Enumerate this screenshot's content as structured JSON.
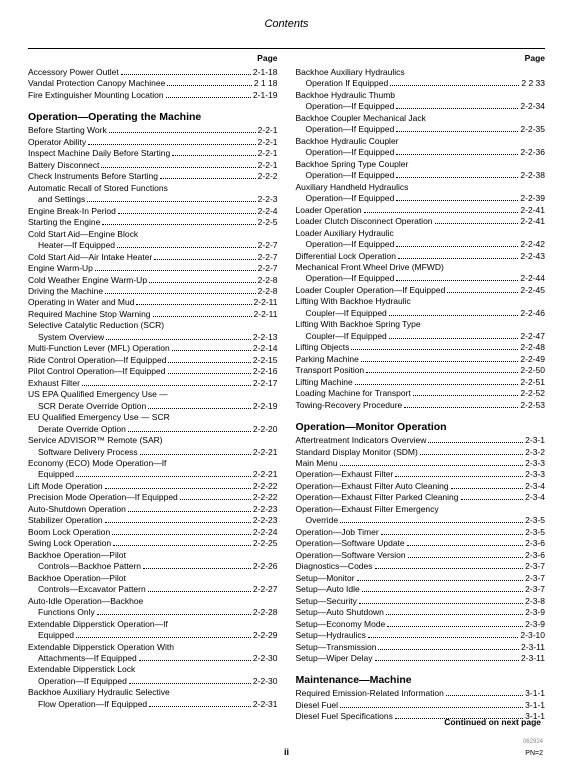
{
  "title": "Contents",
  "pageHeader": "Page",
  "continued": "Continued on next page",
  "pageNumber": "ii",
  "pnLabel": "PN=2",
  "leftColumn": {
    "topEntries": [
      {
        "t": "Accessory Power Outlet",
        "p": "2-1-18",
        "i": 0
      },
      {
        "t": "Vandal Protection   Canopy Machinee",
        "p": "2 1 18",
        "i": 0
      },
      {
        "t": "Fire Extinguisher Mounting Location",
        "p": "2-1-19",
        "i": 0
      }
    ],
    "sections": [
      {
        "heading": "Operation—Operating the Machine",
        "entries": [
          {
            "t": "Before Starting Work",
            "p": "2-2-1",
            "i": 0
          },
          {
            "t": "Operator Ability",
            "p": "2-2-1",
            "i": 0
          },
          {
            "t": "Inspect Machine Daily Before Starting",
            "p": "2-2-1",
            "i": 0
          },
          {
            "t": "Battery Disconnect",
            "p": "2-2-1",
            "i": 0
          },
          {
            "t": "Check Instruments Before Starting",
            "p": "2-2-2",
            "i": 0
          },
          {
            "t": "Automatic Recall of Stored Functions",
            "p": "",
            "i": 0,
            "noLead": true
          },
          {
            "t": "and Settings",
            "p": "2-2-3",
            "i": 1
          },
          {
            "t": "Engine Break-In Period",
            "p": "2-2-4",
            "i": 0
          },
          {
            "t": "Starting the Engine",
            "p": "2-2-5",
            "i": 0
          },
          {
            "t": "Cold Start Aid—Engine Block",
            "p": "",
            "i": 0,
            "noLead": true
          },
          {
            "t": "Heater—If Equipped",
            "p": "2-2-7",
            "i": 1
          },
          {
            "t": "Cold Start Aid—Air Intake Heater",
            "p": "2-2-7",
            "i": 0
          },
          {
            "t": "Engine Warm-Up",
            "p": "2-2-7",
            "i": 0
          },
          {
            "t": "Cold Weather Engine Warm-Up",
            "p": "2-2-8",
            "i": 0
          },
          {
            "t": "Driving the Machine",
            "p": "2-2-8",
            "i": 0
          },
          {
            "t": "Operating in Water and Mud",
            "p": "2-2-11",
            "i": 0
          },
          {
            "t": "Required Machine Stop Warning",
            "p": "2-2-11",
            "i": 0
          },
          {
            "t": "Selective Catalytic Reduction (SCR)",
            "p": "",
            "i": 0,
            "noLead": true
          },
          {
            "t": "System Overview",
            "p": "2-2-13",
            "i": 1
          },
          {
            "t": "Multi-Function Lever (MFL) Operation",
            "p": "2-2-14",
            "i": 0
          },
          {
            "t": "Ride Control Operation—If Equipped",
            "p": "2-2-15",
            "i": 0
          },
          {
            "t": "Pilot Control Operation—If Equipped",
            "p": "2-2-16",
            "i": 0
          },
          {
            "t": "Exhaust Filter",
            "p": "2-2-17",
            "i": 0
          },
          {
            "t": "US EPA Qualified Emergency Use —",
            "p": "",
            "i": 0,
            "noLead": true
          },
          {
            "t": "SCR Derate Override Option",
            "p": "2-2-19",
            "i": 1
          },
          {
            "t": "EU Qualified Emergency Use — SCR",
            "p": "",
            "i": 0,
            "noLead": true
          },
          {
            "t": "Derate Override Option",
            "p": "2-2-20",
            "i": 1
          },
          {
            "t": "Service ADVISOR™ Remote (SAR)",
            "p": "",
            "i": 0,
            "noLead": true
          },
          {
            "t": "Software Delivery Process",
            "p": "2-2-21",
            "i": 1
          },
          {
            "t": "Economy (ECO) Mode Operation—If",
            "p": "",
            "i": 0,
            "noLead": true
          },
          {
            "t": "Equipped",
            "p": "2-2-21",
            "i": 1
          },
          {
            "t": "Lift Mode Operation",
            "p": "2-2-22",
            "i": 0
          },
          {
            "t": "Precision Mode Operation—If Equipped",
            "p": "2-2-22",
            "i": 0
          },
          {
            "t": "Auto-Shutdown Operation",
            "p": "2-2-23",
            "i": 0
          },
          {
            "t": "Stabilizer Operation",
            "p": "2-2-23",
            "i": 0
          },
          {
            "t": "Boom Lock Operation",
            "p": "2-2-24",
            "i": 0
          },
          {
            "t": "Swing Lock Operation",
            "p": "2-2-25",
            "i": 0
          },
          {
            "t": "Backhoe Operation—Pilot",
            "p": "",
            "i": 0,
            "noLead": true
          },
          {
            "t": "Controls—Backhoe Pattern",
            "p": "2-2-26",
            "i": 1
          },
          {
            "t": "Backhoe Operation—Pilot",
            "p": "",
            "i": 0,
            "noLead": true
          },
          {
            "t": "Controls—Excavator Pattern",
            "p": "2-2-27",
            "i": 1
          },
          {
            "t": "Auto-Idle Operation—Backhoe",
            "p": "",
            "i": 0,
            "noLead": true
          },
          {
            "t": "Functions Only",
            "p": "2-2-28",
            "i": 1
          },
          {
            "t": "Extendable Dipperstick Operation—If",
            "p": "",
            "i": 0,
            "noLead": true
          },
          {
            "t": "Equipped",
            "p": "2-2-29",
            "i": 1
          },
          {
            "t": "Extendable Dipperstick Operation With",
            "p": "",
            "i": 0,
            "noLead": true
          },
          {
            "t": "Attachments—If Equipped",
            "p": "2-2-30",
            "i": 1
          },
          {
            "t": "Extendable Dipperstick Lock",
            "p": "",
            "i": 0,
            "noLead": true
          },
          {
            "t": "Operation—If Equipped",
            "p": "2-2-30",
            "i": 1
          },
          {
            "t": "Backhoe Auxiliary Hydraulic Selective",
            "p": "",
            "i": 0,
            "noLead": true
          },
          {
            "t": "Flow Operation—If Equipped",
            "p": "2-2-31",
            "i": 1
          }
        ]
      }
    ]
  },
  "rightColumn": {
    "topEntries": [
      {
        "t": "Backhoe Auxiliary Hydraulics",
        "p": "",
        "i": 0,
        "noLead": true
      },
      {
        "t": "Operation   If Equipped",
        "p": "2 2 33",
        "i": 1
      },
      {
        "t": "Backhoe Hydraulic Thumb",
        "p": "",
        "i": 0,
        "noLead": true
      },
      {
        "t": "Operation—If Equipped",
        "p": "2-2-34",
        "i": 1
      },
      {
        "t": "Backhoe Coupler Mechanical Jack",
        "p": "",
        "i": 0,
        "noLead": true
      },
      {
        "t": "Operation—If Equipped",
        "p": "2-2-35",
        "i": 1
      },
      {
        "t": "Backhoe Hydraulic Coupler",
        "p": "",
        "i": 0,
        "noLead": true
      },
      {
        "t": "Operation—If Equipped",
        "p": "2-2-36",
        "i": 1
      },
      {
        "t": "Backhoe Spring Type Coupler",
        "p": "",
        "i": 0,
        "noLead": true
      },
      {
        "t": "Operation—If Equipped",
        "p": "2-2-38",
        "i": 1
      },
      {
        "t": "Auxiliary Handheld Hydraulics",
        "p": "",
        "i": 0,
        "noLead": true
      },
      {
        "t": "Operation—If Equipped",
        "p": "2-2-39",
        "i": 1
      },
      {
        "t": "Loader Operation",
        "p": "2-2-41",
        "i": 0
      },
      {
        "t": "Loader Clutch Disconnect Operation",
        "p": "2-2-41",
        "i": 0
      },
      {
        "t": "Loader Auxiliary Hydraulic",
        "p": "",
        "i": 0,
        "noLead": true
      },
      {
        "t": "Operation—If Equipped",
        "p": "2-2-42",
        "i": 1
      },
      {
        "t": "Differential Lock Operation",
        "p": "2-2-43",
        "i": 0
      },
      {
        "t": "Mechanical Front Wheel Drive (MFWD)",
        "p": "",
        "i": 0,
        "noLead": true
      },
      {
        "t": "Operation—If Equipped",
        "p": "2-2-44",
        "i": 1
      },
      {
        "t": "Loader Coupler Operation—If Equipped",
        "p": "2-2-45",
        "i": 0
      },
      {
        "t": "Lifting With Backhoe Hydraulic",
        "p": "",
        "i": 0,
        "noLead": true
      },
      {
        "t": "Coupler—If Equipped",
        "p": "2-2-46",
        "i": 1
      },
      {
        "t": "Lifting With Backhoe Spring Type",
        "p": "",
        "i": 0,
        "noLead": true
      },
      {
        "t": "Coupler—If Equipped",
        "p": "2-2-47",
        "i": 1
      },
      {
        "t": "Lifting Objects",
        "p": "2-2-48",
        "i": 0
      },
      {
        "t": "Parking Machine",
        "p": "2-2-49",
        "i": 0
      },
      {
        "t": "Transport Position",
        "p": "2-2-50",
        "i": 0
      },
      {
        "t": "Lifting Machine",
        "p": "2-2-51",
        "i": 0
      },
      {
        "t": "Loading Machine for Transport",
        "p": "2-2-52",
        "i": 0
      },
      {
        "t": "Towing-Recovery Procedure",
        "p": "2-2-53",
        "i": 0
      }
    ],
    "sections": [
      {
        "heading": "Operation—Monitor Operation",
        "entries": [
          {
            "t": "Aftertreatment Indicators Overview",
            "p": "2-3-1",
            "i": 0
          },
          {
            "t": "Standard Display Monitor (SDM)",
            "p": "2-3-2",
            "i": 0
          },
          {
            "t": "Main Menu",
            "p": "2-3-3",
            "i": 0
          },
          {
            "t": "Operation—Exhaust Filter",
            "p": "2-3-3",
            "i": 0
          },
          {
            "t": "Operation—Exhaust Filter Auto Cleaning",
            "p": "2-3-4",
            "i": 0
          },
          {
            "t": "Operation—Exhaust Filter Parked Cleaning",
            "p": "2-3-4",
            "i": 0
          },
          {
            "t": "Operation—Exhaust Filter Emergency",
            "p": "",
            "i": 0,
            "noLead": true
          },
          {
            "t": "Override",
            "p": "2-3-5",
            "i": 1
          },
          {
            "t": "Operation—Job Timer",
            "p": "2-3-5",
            "i": 0
          },
          {
            "t": "Operation—Software Update",
            "p": "2-3-6",
            "i": 0
          },
          {
            "t": "Operation—Software Version",
            "p": "2-3-6",
            "i": 0
          },
          {
            "t": "Diagnostics—Codes",
            "p": "2-3-7",
            "i": 0
          },
          {
            "t": "Setup—Monitor",
            "p": "2-3-7",
            "i": 0
          },
          {
            "t": "Setup—Auto Idle",
            "p": "2-3-7",
            "i": 0
          },
          {
            "t": "Setup—Security",
            "p": "2-3-8",
            "i": 0
          },
          {
            "t": "Setup—Auto Shutdown",
            "p": "2-3-9",
            "i": 0
          },
          {
            "t": "Setup—Economy Mode",
            "p": "2-3-9",
            "i": 0
          },
          {
            "t": "Setup—Hydraulics",
            "p": "2-3-10",
            "i": 0
          },
          {
            "t": "Setup—Transmission",
            "p": "2-3-11",
            "i": 0
          },
          {
            "t": "Setup—Wiper Delay",
            "p": "2-3-11",
            "i": 0
          }
        ]
      },
      {
        "heading": "Maintenance—Machine",
        "entries": [
          {
            "t": "Required Emission-Related Information",
            "p": "3-1-1",
            "i": 0
          },
          {
            "t": "Diesel Fuel",
            "p": "3-1-1",
            "i": 0
          },
          {
            "t": "Diesel Fuel Specifications",
            "p": "3-1-1",
            "i": 0
          }
        ]
      }
    ]
  }
}
